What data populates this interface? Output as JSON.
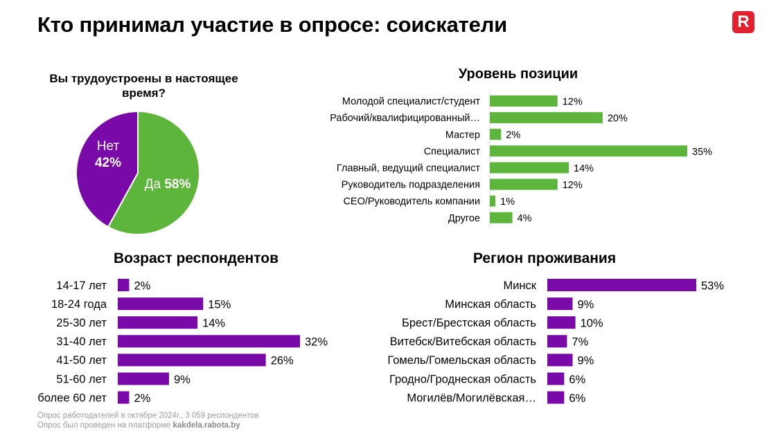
{
  "header": {
    "title": "Кто принимал участие в опросе: соискатели",
    "logo_letter": "R"
  },
  "colors": {
    "green": "#5db53c",
    "purple": "#7a0aa8",
    "logo": "#e3202e",
    "text": "#000000",
    "footnote": "#9a9a9a"
  },
  "chart_data": [
    {
      "type": "pie",
      "title": "Вы трудоустроены в настоящее время?",
      "slices": [
        {
          "label": "Да",
          "value": 58,
          "value_label": "58%",
          "color": "#5db53c"
        },
        {
          "label": "Нет",
          "value": 42,
          "value_label": "42%",
          "color": "#7a0aa8"
        }
      ]
    },
    {
      "type": "bar",
      "orientation": "horizontal",
      "title": "Уровень позиции",
      "color": "#5db53c",
      "categories": [
        "Молодой специалист/студент",
        "Рабочий/квалифицированный…",
        "Мастер",
        "Специалист",
        "Главный, ведущий специалист",
        "Руководитель подразделения",
        "CEO/Руководитель компании",
        "Другое"
      ],
      "values": [
        12,
        20,
        2,
        35,
        14,
        12,
        1,
        4
      ],
      "value_labels": [
        "12%",
        "20%",
        "2%",
        "35%",
        "14%",
        "12%",
        "1%",
        "4%"
      ],
      "xlim": [
        0,
        35
      ]
    },
    {
      "type": "bar",
      "orientation": "horizontal",
      "title": "Возраст респондентов",
      "color": "#7a0aa8",
      "categories": [
        "14-17 лет",
        "18-24 года",
        "25-30 лет",
        "31-40 лет",
        "41-50 лет",
        "51-60 лет",
        "более 60 лет"
      ],
      "values": [
        2,
        15,
        14,
        32,
        26,
        9,
        2
      ],
      "value_labels": [
        "2%",
        "15%",
        "14%",
        "32%",
        "26%",
        "9%",
        "2%"
      ],
      "xlim": [
        0,
        32
      ]
    },
    {
      "type": "bar",
      "orientation": "horizontal",
      "title": "Регион проживания",
      "color": "#7a0aa8",
      "categories": [
        "Минск",
        "Минская область",
        "Брест/Брестская область",
        "Витебск/Витебская область",
        "Гомель/Гомельская область",
        "Гродно/Гроднеская область",
        "Могилёв/Могилёвская…"
      ],
      "values": [
        53,
        9,
        10,
        7,
        9,
        6,
        6
      ],
      "value_labels": [
        "53%",
        "9%",
        "10%",
        "7%",
        "9%",
        "6%",
        "6%"
      ],
      "xlim": [
        0,
        53
      ]
    }
  ],
  "footnote": {
    "line1": "Опрос работодателей в октябре 2024г., 3 059 респондентов",
    "line2_prefix": "Опрос был проведен на платформе",
    "line2_link": "kakdela.rabota.by"
  }
}
